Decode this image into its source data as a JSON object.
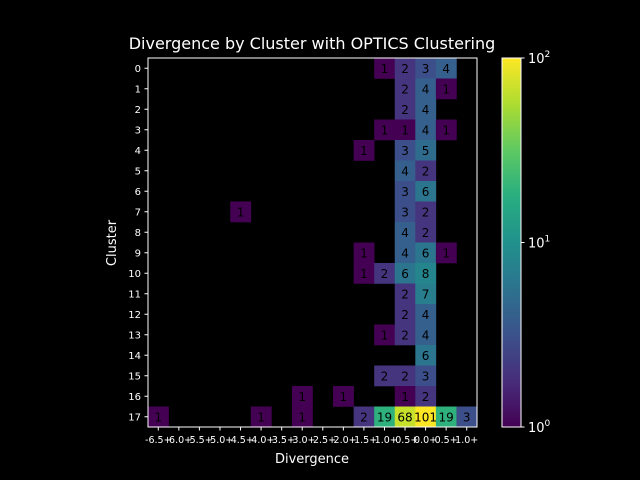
{
  "chart_data": {
    "type": "heatmap",
    "title": "Divergence by Cluster with OPTICS Clustering",
    "xlabel": "Divergence",
    "ylabel": "Cluster",
    "x_categories": [
      "-6.5+",
      "-6.0+",
      "-5.5+",
      "-5.0+",
      "-4.5+",
      "-4.0+",
      "-3.5+",
      "-3.0+",
      "-2.5+",
      "-2.0+",
      "-1.5+",
      "-1.0+",
      "-0.5+",
      "0.0+",
      "0.5+",
      "1.0+"
    ],
    "y_categories": [
      "0",
      "1",
      "2",
      "3",
      "4",
      "5",
      "6",
      "7",
      "8",
      "9",
      "10",
      "11",
      "12",
      "13",
      "14",
      "15",
      "16",
      "17"
    ],
    "cells": [
      {
        "row": 0,
        "col": 11,
        "value": 1
      },
      {
        "row": 0,
        "col": 12,
        "value": 2
      },
      {
        "row": 0,
        "col": 13,
        "value": 3
      },
      {
        "row": 0,
        "col": 14,
        "value": 4
      },
      {
        "row": 1,
        "col": 12,
        "value": 2
      },
      {
        "row": 1,
        "col": 13,
        "value": 4
      },
      {
        "row": 1,
        "col": 14,
        "value": 1
      },
      {
        "row": 2,
        "col": 12,
        "value": 2
      },
      {
        "row": 2,
        "col": 13,
        "value": 4
      },
      {
        "row": 3,
        "col": 11,
        "value": 1
      },
      {
        "row": 3,
        "col": 12,
        "value": 1
      },
      {
        "row": 3,
        "col": 13,
        "value": 4
      },
      {
        "row": 3,
        "col": 14,
        "value": 1
      },
      {
        "row": 4,
        "col": 10,
        "value": 1
      },
      {
        "row": 4,
        "col": 12,
        "value": 3
      },
      {
        "row": 4,
        "col": 13,
        "value": 5
      },
      {
        "row": 5,
        "col": 12,
        "value": 4
      },
      {
        "row": 5,
        "col": 13,
        "value": 2
      },
      {
        "row": 6,
        "col": 12,
        "value": 3
      },
      {
        "row": 6,
        "col": 13,
        "value": 6
      },
      {
        "row": 7,
        "col": 4,
        "value": 1
      },
      {
        "row": 7,
        "col": 12,
        "value": 3
      },
      {
        "row": 7,
        "col": 13,
        "value": 2
      },
      {
        "row": 8,
        "col": 12,
        "value": 4
      },
      {
        "row": 8,
        "col": 13,
        "value": 2
      },
      {
        "row": 9,
        "col": 10,
        "value": 1
      },
      {
        "row": 9,
        "col": 12,
        "value": 4
      },
      {
        "row": 9,
        "col": 13,
        "value": 6
      },
      {
        "row": 9,
        "col": 14,
        "value": 1
      },
      {
        "row": 10,
        "col": 10,
        "value": 1
      },
      {
        "row": 10,
        "col": 11,
        "value": 2
      },
      {
        "row": 10,
        "col": 12,
        "value": 6
      },
      {
        "row": 10,
        "col": 13,
        "value": 8
      },
      {
        "row": 11,
        "col": 12,
        "value": 2
      },
      {
        "row": 11,
        "col": 13,
        "value": 7
      },
      {
        "row": 12,
        "col": 12,
        "value": 2
      },
      {
        "row": 12,
        "col": 13,
        "value": 4
      },
      {
        "row": 13,
        "col": 11,
        "value": 1
      },
      {
        "row": 13,
        "col": 12,
        "value": 2
      },
      {
        "row": 13,
        "col": 13,
        "value": 4
      },
      {
        "row": 14,
        "col": 13,
        "value": 6
      },
      {
        "row": 15,
        "col": 11,
        "value": 2
      },
      {
        "row": 15,
        "col": 12,
        "value": 2
      },
      {
        "row": 15,
        "col": 13,
        "value": 3
      },
      {
        "row": 16,
        "col": 7,
        "value": 1
      },
      {
        "row": 16,
        "col": 9,
        "value": 1
      },
      {
        "row": 16,
        "col": 12,
        "value": 1
      },
      {
        "row": 16,
        "col": 13,
        "value": 2
      },
      {
        "row": 17,
        "col": 0,
        "value": 1
      },
      {
        "row": 17,
        "col": 5,
        "value": 1
      },
      {
        "row": 17,
        "col": 7,
        "value": 1
      },
      {
        "row": 17,
        "col": 10,
        "value": 2
      },
      {
        "row": 17,
        "col": 11,
        "value": 19
      },
      {
        "row": 17,
        "col": 12,
        "value": 68
      },
      {
        "row": 17,
        "col": 13,
        "value": 101
      },
      {
        "row": 17,
        "col": 14,
        "value": 19
      },
      {
        "row": 17,
        "col": 15,
        "value": 3
      }
    ],
    "colorbar": {
      "scale": "log",
      "range": [
        1,
        100
      ],
      "colormap": "viridis",
      "tick_values": [
        1,
        10,
        100
      ],
      "tick_labels": [
        {
          "base": "10",
          "exp": "0"
        },
        {
          "base": "10",
          "exp": "1"
        },
        {
          "base": "10",
          "exp": "2"
        }
      ]
    },
    "colors": {
      "background": "#000000",
      "foreground": "#ffffff",
      "label_text": "#000000"
    },
    "grid": false
  }
}
